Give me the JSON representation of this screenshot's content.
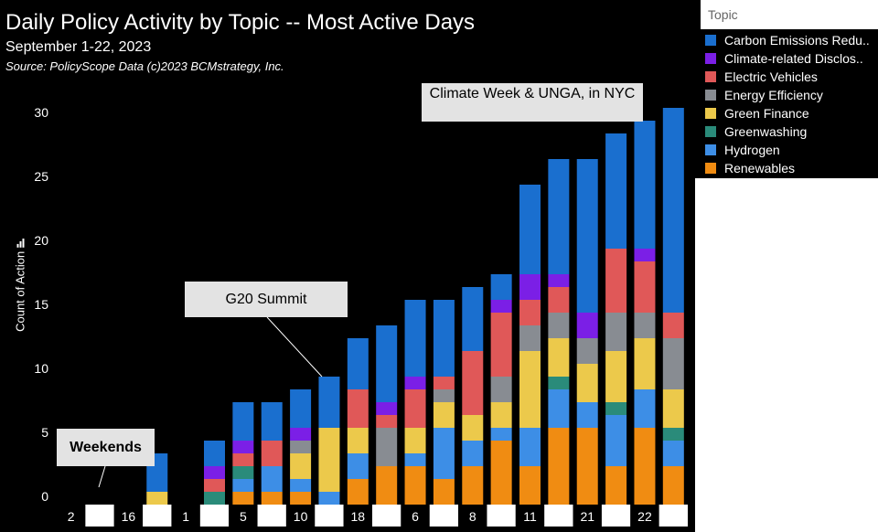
{
  "chart_data": {
    "type": "bar",
    "stacked": true,
    "title": "Daily Policy Activity by Topic -- Most Active Days",
    "subtitle": "September 1-22, 2023",
    "source": "Source: PolicyScope Data (c)2023 BCMstrategy, Inc.",
    "ylabel": "Count of Action",
    "ylabel_icon": "bar-chart-icon",
    "ylim": [
      0,
      32
    ],
    "yticks": [
      0,
      5,
      10,
      15,
      20,
      25,
      30
    ],
    "x_tick_labels": [
      "2",
      "",
      "16",
      "",
      "1",
      "",
      "5",
      "",
      "10",
      "",
      "18",
      "",
      "6",
      "",
      "8",
      "",
      "11",
      "",
      "21",
      "",
      "22",
      ""
    ],
    "legend_title": "Topic",
    "legend_position": "top-right",
    "series": [
      {
        "name": "Renewables",
        "legend_label": "Renewables",
        "color": "#f08c12",
        "values": [
          0,
          0,
          0,
          0,
          0,
          0,
          1,
          1,
          1,
          0,
          2,
          3,
          3,
          2,
          3,
          5,
          3,
          6,
          6,
          3,
          6,
          3
        ]
      },
      {
        "name": "Hydrogen",
        "legend_label": "Hydrogen",
        "color": "#3d8ee6",
        "values": [
          0,
          0,
          0,
          0,
          0,
          0,
          1,
          2,
          1,
          1,
          2,
          0,
          1,
          4,
          2,
          1,
          3,
          3,
          2,
          4,
          3,
          2
        ]
      },
      {
        "name": "Greenwashing",
        "legend_label": "Greenwashing",
        "color": "#2a8b7a",
        "values": [
          0,
          0,
          0,
          0,
          0,
          1,
          1,
          0,
          0,
          0,
          0,
          0,
          0,
          0,
          0,
          0,
          0,
          1,
          0,
          1,
          0,
          1
        ]
      },
      {
        "name": "Green Finance",
        "legend_label": "Green Finance",
        "color": "#ecc94b",
        "values": [
          0,
          0,
          0,
          1,
          0,
          0,
          0,
          0,
          2,
          5,
          2,
          0,
          2,
          2,
          2,
          2,
          6,
          3,
          3,
          4,
          4,
          3
        ]
      },
      {
        "name": "Energy Efficiency",
        "legend_label": "Energy Efficiency",
        "color": "#888c92",
        "values": [
          0,
          0,
          0,
          0,
          0,
          0,
          0,
          0,
          1,
          0,
          0,
          3,
          0,
          1,
          0,
          2,
          2,
          2,
          2,
          3,
          2,
          4
        ]
      },
      {
        "name": "Electric Vehicles",
        "legend_label": "Electric Vehicles",
        "color": "#e05858",
        "values": [
          0,
          0,
          0,
          0,
          0,
          1,
          1,
          2,
          0,
          0,
          3,
          1,
          3,
          1,
          5,
          5,
          2,
          2,
          0,
          5,
          4,
          2
        ]
      },
      {
        "name": "Climate-related Disclosures",
        "legend_label": "Climate-related Disclos..",
        "color": "#7b1fe6",
        "values": [
          0,
          0,
          0,
          0,
          0,
          1,
          1,
          0,
          1,
          0,
          0,
          1,
          1,
          0,
          0,
          1,
          2,
          1,
          2,
          0,
          1,
          0
        ]
      },
      {
        "name": "Carbon Emissions Reduction",
        "legend_label": "Carbon Emissions Redu..",
        "color": "#1a6fcf",
        "values": [
          0,
          0,
          0,
          3,
          0,
          2,
          3,
          3,
          3,
          4,
          4,
          6,
          6,
          6,
          5,
          2,
          7,
          9,
          12,
          9,
          10,
          16
        ]
      }
    ],
    "annotations": [
      {
        "text": "G20 Summit"
      },
      {
        "text": "Weekends"
      },
      {
        "text": "Climate Week & UNGA, in NYC"
      }
    ]
  }
}
